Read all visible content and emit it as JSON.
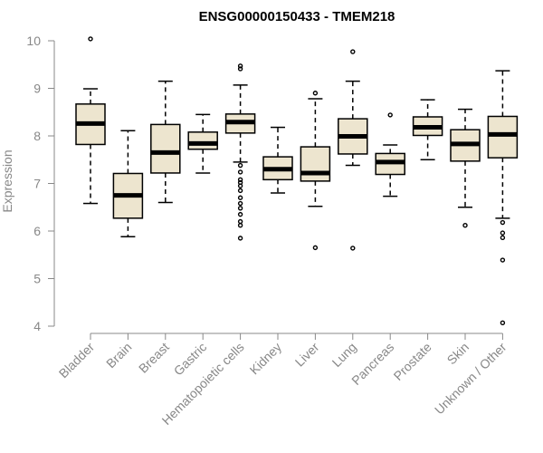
{
  "chart_data": {
    "type": "boxplot",
    "title": "ENSG00000150433 - TMEM218",
    "xlabel": "",
    "ylabel": "Expression",
    "ylim": [
      4,
      10
    ],
    "yticks": [
      4,
      5,
      6,
      7,
      8,
      9,
      10
    ],
    "grid": false,
    "categories": [
      "Bladder",
      "Brain",
      "Breast",
      "Gastric",
      "Hematopoietic cells",
      "Kidney",
      "Liver",
      "Lung",
      "Pancreas",
      "Prostate",
      "Skin",
      "Unknown / Other"
    ],
    "boxes": [
      {
        "name": "Bladder",
        "whisker_low": 6.58,
        "q1": 7.82,
        "median": 8.26,
        "q3": 8.67,
        "whisker_high": 8.99,
        "outliers": [
          10.04
        ]
      },
      {
        "name": "Brain",
        "whisker_low": 5.88,
        "q1": 6.27,
        "median": 6.75,
        "q3": 7.21,
        "whisker_high": 8.11,
        "outliers": []
      },
      {
        "name": "Breast",
        "whisker_low": 6.6,
        "q1": 7.22,
        "median": 7.65,
        "q3": 8.24,
        "whisker_high": 9.15,
        "outliers": []
      },
      {
        "name": "Gastric",
        "whisker_low": 7.22,
        "q1": 7.72,
        "median": 7.84,
        "q3": 8.08,
        "whisker_high": 8.45,
        "outliers": []
      },
      {
        "name": "Hematopoietic cells",
        "whisker_low": 7.45,
        "q1": 8.06,
        "median": 8.29,
        "q3": 8.46,
        "whisker_high": 9.07,
        "outliers": [
          9.47,
          9.41,
          7.38,
          7.24,
          7.08,
          7.02,
          6.95,
          6.85,
          6.7,
          6.58,
          6.48,
          6.35,
          6.2,
          6.12,
          5.85
        ]
      },
      {
        "name": "Kidney",
        "whisker_low": 6.8,
        "q1": 7.08,
        "median": 7.3,
        "q3": 7.56,
        "whisker_high": 8.18,
        "outliers": []
      },
      {
        "name": "Liver",
        "whisker_low": 6.52,
        "q1": 7.05,
        "median": 7.22,
        "q3": 7.77,
        "whisker_high": 8.78,
        "outliers": [
          8.9,
          5.65
        ]
      },
      {
        "name": "Lung",
        "whisker_low": 7.38,
        "q1": 7.62,
        "median": 7.99,
        "q3": 8.36,
        "whisker_high": 9.15,
        "outliers": [
          9.77,
          5.64
        ]
      },
      {
        "name": "Pancreas",
        "whisker_low": 6.73,
        "q1": 7.19,
        "median": 7.45,
        "q3": 7.63,
        "whisker_high": 7.81,
        "outliers": [
          8.44
        ]
      },
      {
        "name": "Prostate",
        "whisker_low": 7.5,
        "q1": 8.01,
        "median": 8.18,
        "q3": 8.4,
        "whisker_high": 8.76,
        "outliers": []
      },
      {
        "name": "Skin",
        "whisker_low": 6.5,
        "q1": 7.47,
        "median": 7.83,
        "q3": 8.13,
        "whisker_high": 8.56,
        "outliers": [
          6.12
        ]
      },
      {
        "name": "Unknown / Other",
        "whisker_low": 6.27,
        "q1": 7.54,
        "median": 8.03,
        "q3": 8.41,
        "whisker_high": 9.37,
        "outliers": [
          6.18,
          5.96,
          5.86,
          5.39,
          4.07
        ]
      }
    ]
  },
  "colors": {
    "box_fill": "#ede5cf",
    "stroke": "#000000",
    "axis": "#888888"
  }
}
